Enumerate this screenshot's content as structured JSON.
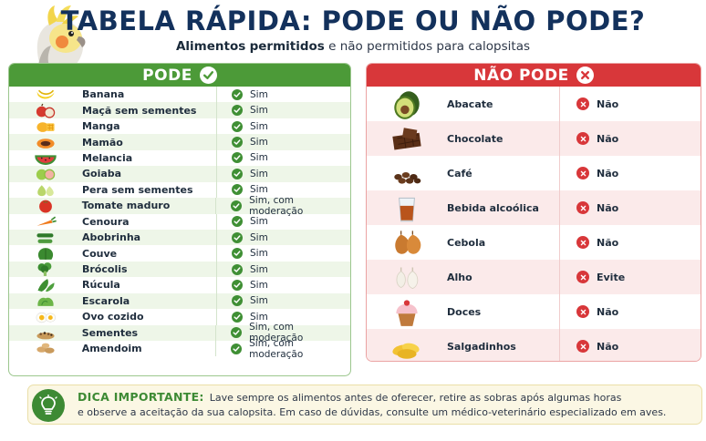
{
  "title": "TABELA RÁPIDA: PODE OU NÃO PODE?",
  "subtitle": {
    "part1": "Alimentos",
    "part2": "permitidos",
    "part3": "e não permitidos para calopsitas"
  },
  "pode": {
    "header": "PODE",
    "items": [
      {
        "name": "Banana",
        "status": "Sim",
        "icon": "banana"
      },
      {
        "name": "Maçã sem sementes",
        "status": "Sim",
        "icon": "apple"
      },
      {
        "name": "Manga",
        "status": "Sim",
        "icon": "mango"
      },
      {
        "name": "Mamão",
        "status": "Sim",
        "icon": "papaya"
      },
      {
        "name": "Melancia",
        "status": "Sim",
        "icon": "watermelon"
      },
      {
        "name": "Goiaba",
        "status": "Sim",
        "icon": "guava"
      },
      {
        "name": "Pera sem sementes",
        "status": "Sim",
        "icon": "pear"
      },
      {
        "name": "Tomate maduro",
        "status": "Sim, com moderação",
        "icon": "tomato"
      },
      {
        "name": "Cenoura",
        "status": "Sim",
        "icon": "carrot"
      },
      {
        "name": "Abobrinha",
        "status": "Sim",
        "icon": "zucchini"
      },
      {
        "name": "Couve",
        "status": "Sim",
        "icon": "kale"
      },
      {
        "name": "Brócolis",
        "status": "Sim",
        "icon": "broccoli"
      },
      {
        "name": "Rúcula",
        "status": "Sim",
        "icon": "arugula"
      },
      {
        "name": "Escarola",
        "status": "Sim",
        "icon": "escarole"
      },
      {
        "name": "Ovo cozido",
        "status": "Sim",
        "icon": "egg"
      },
      {
        "name": "Sementes",
        "status": "Sim, com moderação",
        "icon": "seeds"
      },
      {
        "name": "Amendoim",
        "status": "Sim, com moderação",
        "icon": "peanut"
      }
    ]
  },
  "nao_pode": {
    "header": "NÃO PODE",
    "items": [
      {
        "name": "Abacate",
        "status": "Não",
        "icon": "avocado"
      },
      {
        "name": "Chocolate",
        "status": "Não",
        "icon": "chocolate"
      },
      {
        "name": "Café",
        "status": "Não",
        "icon": "coffee-beans"
      },
      {
        "name": "Bebida alcoólica",
        "status": "Não",
        "icon": "alcohol-glass"
      },
      {
        "name": "Cebola",
        "status": "Não",
        "icon": "onion"
      },
      {
        "name": "Alho",
        "status": "Evite",
        "icon": "garlic"
      },
      {
        "name": "Doces",
        "status": "Não",
        "icon": "cupcake"
      },
      {
        "name": "Salgadinhos",
        "status": "Não",
        "icon": "chips"
      }
    ]
  },
  "tip": {
    "title": "DICA IMPORTANTE:",
    "line1": "Lave sempre os alimentos antes de oferecer, retire as sobras após algumas horas",
    "line2": "e observe a aceitação da sua calopsita. Em caso de dúvidas, consulte um médico-veterinário especializado em aves.",
    "icon": "lightbulb-icon"
  },
  "colors": {
    "title": "#13315c",
    "pode_green": "#4c9a38",
    "nao_red": "#d8373a",
    "tip_green": "#3d8a34"
  }
}
